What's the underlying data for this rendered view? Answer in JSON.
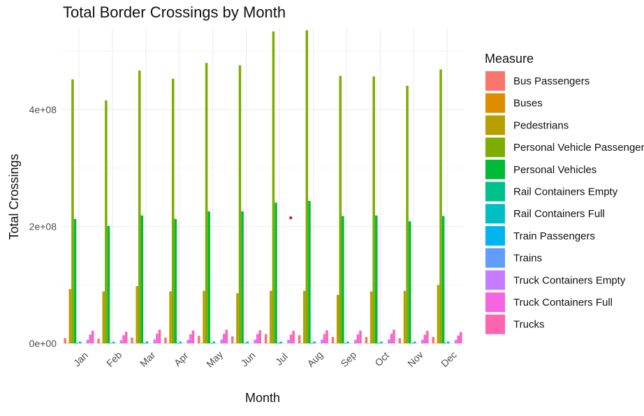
{
  "chart_data": {
    "type": "bar",
    "title": "Total Border Crossings by Month",
    "xlabel": "Month",
    "ylabel": "Total Crossings",
    "ylim": [
      0,
      540000000
    ],
    "yticks": [
      0,
      200000000,
      400000000
    ],
    "ytick_labels": [
      "0e+00",
      "2e+08",
      "4e+08"
    ],
    "grid": true,
    "legend_title": "Measure",
    "legend_position": "right",
    "categories": [
      "Jan",
      "Feb",
      "Mar",
      "Apr",
      "May",
      "Jun",
      "Jul",
      "Aug",
      "Sep",
      "Oct",
      "Nov",
      "Dec"
    ],
    "series": [
      {
        "name": "Bus Passengers",
        "color": "#F8766D",
        "values": [
          9000000,
          8000000,
          10000000,
          10000000,
          13000000,
          12000000,
          16000000,
          14000000,
          11000000,
          11000000,
          9000000,
          11000000
        ]
      },
      {
        "name": "Buses",
        "color": "#DE8C00",
        "values": [
          400000,
          350000,
          400000,
          400000,
          450000,
          450000,
          500000,
          500000,
          400000,
          400000,
          350000,
          400000
        ]
      },
      {
        "name": "Pedestrians",
        "color": "#B79F00",
        "values": [
          93000000,
          89000000,
          98000000,
          89000000,
          90000000,
          86000000,
          90000000,
          90000000,
          83000000,
          89000000,
          90000000,
          100000000
        ]
      },
      {
        "name": "Personal Vehicle Passengers",
        "color": "#7CAE00",
        "values": [
          452000000,
          416000000,
          467000000,
          453000000,
          480000000,
          476000000,
          534000000,
          536000000,
          458000000,
          457000000,
          441000000,
          469000000
        ]
      },
      {
        "name": "Personal Vehicles",
        "color": "#00BA38",
        "values": [
          213000000,
          201000000,
          219000000,
          213000000,
          226000000,
          226000000,
          241000000,
          244000000,
          218000000,
          219000000,
          209000000,
          218000000
        ]
      },
      {
        "name": "Rail Containers Empty",
        "color": "#00C08B",
        "values": [
          1000000,
          950000,
          1100000,
          1050000,
          1050000,
          1000000,
          950000,
          1050000,
          1000000,
          1050000,
          1000000,
          1000000
        ]
      },
      {
        "name": "Rail Containers Full",
        "color": "#00BFC4",
        "values": [
          3000000,
          2900000,
          3300000,
          3100000,
          3200000,
          3100000,
          3000000,
          3300000,
          3100000,
          3200000,
          3000000,
          3000000
        ]
      },
      {
        "name": "Train Passengers",
        "color": "#00B4F0",
        "values": [
          200000,
          180000,
          220000,
          220000,
          250000,
          270000,
          300000,
          290000,
          220000,
          220000,
          200000,
          240000
        ]
      },
      {
        "name": "Trains",
        "color": "#619CFF",
        "values": [
          40000,
          38000,
          42000,
          41000,
          43000,
          42000,
          42000,
          43000,
          41000,
          42000,
          40000,
          40000
        ]
      },
      {
        "name": "Truck Containers Empty",
        "color": "#C77CFF",
        "values": [
          6000000,
          5500000,
          6500000,
          6200000,
          6500000,
          6300000,
          6100000,
          6400000,
          6200000,
          6500000,
          6100000,
          5800000
        ]
      },
      {
        "name": "Truck Containers Full",
        "color": "#F564E3",
        "values": [
          15000000,
          14000000,
          16500000,
          15500000,
          16500000,
          16000000,
          15000000,
          16000000,
          15500000,
          16500000,
          15000000,
          13500000
        ]
      },
      {
        "name": "Trucks",
        "color": "#FF64B0",
        "values": [
          21500000,
          20000000,
          23500000,
          22000000,
          23500000,
          22500000,
          21500000,
          22500000,
          22000000,
          23500000,
          21500000,
          19500000
        ]
      }
    ],
    "annotation": {
      "x_category": "Jul",
      "x_offset_groups": 0.33,
      "y": 215000000,
      "color": "#e41a1c"
    }
  }
}
